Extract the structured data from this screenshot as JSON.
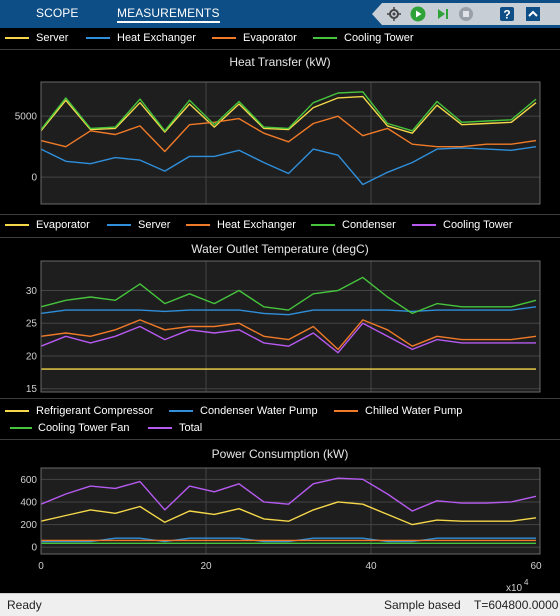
{
  "tabs": [
    {
      "label": "SCOPE"
    },
    {
      "label": "MEASUREMENTS"
    }
  ],
  "toolbar": {
    "icons": [
      "signal-trace-icon",
      "run-icon",
      "step-forward-icon",
      "stop-icon",
      "help-icon",
      "collapse-icon"
    ]
  },
  "legend1": [
    {
      "name": "Server",
      "color": "#f5d84a"
    },
    {
      "name": "Heat Exchanger",
      "color": "#2f8fdb"
    },
    {
      "name": "Evaporator",
      "color": "#f07a28"
    },
    {
      "name": "Cooling Tower",
      "color": "#45c43c"
    }
  ],
  "legend2": [
    {
      "name": "Evaporator",
      "color": "#f5d84a"
    },
    {
      "name": "Server",
      "color": "#2f8fdb"
    },
    {
      "name": "Heat Exchanger",
      "color": "#f07a28"
    },
    {
      "name": "Condenser",
      "color": "#45c43c"
    },
    {
      "name": "Cooling Tower",
      "color": "#b65af0"
    }
  ],
  "legend3": [
    {
      "name": "Refrigerant Compressor",
      "color": "#f5d84a"
    },
    {
      "name": "Condenser Water Pump",
      "color": "#2f8fdb"
    },
    {
      "name": "Chilled Water Pump",
      "color": "#f07a28"
    },
    {
      "name": "Cooling Tower Fan",
      "color": "#45c43c"
    },
    {
      "name": "Total",
      "color": "#b65af0"
    }
  ],
  "plots": {
    "p1_title": "Heat Transfer (kW)",
    "p2_title": "Water Outlet Temperature (degC)",
    "p3_title": "Power Consumption (kW)"
  },
  "xaxis": {
    "ticks": [
      "0",
      "20",
      "40",
      "60"
    ],
    "exponent_base": "x10",
    "exponent_power": "4"
  },
  "status": {
    "left": "Ready",
    "mode": "Sample based",
    "time": "T=604800.0000"
  },
  "chart_data": [
    {
      "type": "line",
      "title": "Heat Transfer (kW)",
      "x": [
        0,
        3,
        6,
        9,
        12,
        15,
        18,
        21,
        24,
        27,
        30,
        33,
        36,
        39,
        42,
        45,
        48,
        51,
        54,
        57,
        60
      ],
      "xlim": [
        0,
        60.48
      ],
      "ylim": [
        -2200,
        7800
      ],
      "yticks": [
        0,
        5000
      ],
      "series": [
        {
          "name": "Server",
          "color": "#f5d84a",
          "values": [
            3800,
            6300,
            3900,
            4000,
            6100,
            3700,
            6000,
            4100,
            6000,
            4000,
            3900,
            5700,
            6500,
            6600,
            4200,
            3600,
            5900,
            4300,
            4400,
            4500,
            6100
          ]
        },
        {
          "name": "Heat Exchanger",
          "color": "#2f8fdb",
          "values": [
            2300,
            1300,
            1100,
            1600,
            1400,
            500,
            1700,
            1700,
            2200,
            1200,
            300,
            2300,
            1800,
            -600,
            400,
            1200,
            2300,
            2400,
            2300,
            2200,
            2500
          ]
        },
        {
          "name": "Evaporator",
          "color": "#f07a28",
          "values": [
            3000,
            2500,
            3800,
            3500,
            4200,
            2100,
            4300,
            4500,
            4800,
            3600,
            2900,
            4400,
            5000,
            3400,
            4000,
            2700,
            2500,
            2500,
            2700,
            2700,
            3000
          ]
        },
        {
          "name": "Cooling Tower",
          "color": "#45c43c",
          "values": [
            3900,
            6500,
            4000,
            4100,
            6400,
            3800,
            6300,
            4300,
            6200,
            4100,
            4000,
            6100,
            6900,
            7000,
            4400,
            3800,
            6200,
            4500,
            4600,
            4700,
            6400
          ]
        }
      ]
    },
    {
      "type": "line",
      "title": "Water Outlet Temperature (degC)",
      "x": [
        0,
        3,
        6,
        9,
        12,
        15,
        18,
        21,
        24,
        27,
        30,
        33,
        36,
        39,
        42,
        45,
        48,
        51,
        54,
        57,
        60
      ],
      "xlim": [
        0,
        60.48
      ],
      "ylim": [
        14.5,
        34.5
      ],
      "yticks": [
        15,
        20,
        25,
        30
      ],
      "series": [
        {
          "name": "Evaporator",
          "color": "#f5d84a",
          "values": [
            18,
            18,
            18,
            18,
            18,
            18,
            18,
            18,
            18,
            18,
            18,
            18,
            18,
            18,
            18,
            18,
            18,
            18,
            18,
            18,
            18
          ]
        },
        {
          "name": "Server",
          "color": "#2f8fdb",
          "values": [
            26.5,
            27,
            27,
            27,
            27,
            26.8,
            27,
            27,
            27,
            26.5,
            26.3,
            27,
            27,
            27,
            27,
            26.8,
            27,
            27,
            27,
            27,
            27.5
          ]
        },
        {
          "name": "Heat Exchanger",
          "color": "#f07a28",
          "values": [
            23,
            23.5,
            23,
            24,
            25.5,
            24,
            24.5,
            24.5,
            25,
            23,
            22.5,
            24.5,
            21,
            25.5,
            24,
            21.5,
            23,
            22.5,
            22.5,
            22.5,
            23
          ]
        },
        {
          "name": "Condenser",
          "color": "#45c43c",
          "values": [
            27.5,
            28.5,
            29,
            28.5,
            31,
            28,
            29.5,
            28,
            30,
            27.5,
            27,
            29.5,
            30,
            32,
            29,
            26.5,
            28,
            27.5,
            27.5,
            27.5,
            28.5
          ]
        },
        {
          "name": "Cooling Tower",
          "color": "#b65af0",
          "values": [
            21.5,
            23,
            22,
            23,
            24.5,
            22.5,
            24,
            23.5,
            24,
            22,
            21.5,
            23.5,
            20.5,
            25,
            23,
            21,
            22.5,
            22,
            22,
            22,
            22
          ]
        }
      ]
    },
    {
      "type": "line",
      "title": "Power Consumption (kW)",
      "x": [
        0,
        3,
        6,
        9,
        12,
        15,
        18,
        21,
        24,
        27,
        30,
        33,
        36,
        39,
        42,
        45,
        48,
        51,
        54,
        57,
        60
      ],
      "xlim": [
        0,
        60.48
      ],
      "ylim": [
        -60,
        700
      ],
      "yticks": [
        0,
        200,
        400,
        600
      ],
      "xticks": [
        0,
        20,
        40,
        60
      ],
      "series": [
        {
          "name": "Refrigerant Compressor",
          "color": "#f5d84a",
          "values": [
            230,
            280,
            330,
            300,
            360,
            220,
            320,
            290,
            340,
            250,
            230,
            330,
            400,
            380,
            290,
            200,
            240,
            230,
            230,
            230,
            260
          ]
        },
        {
          "name": "Condenser Water Pump",
          "color": "#2f8fdb",
          "values": [
            50,
            50,
            50,
            80,
            80,
            50,
            80,
            80,
            80,
            50,
            50,
            80,
            80,
            80,
            50,
            50,
            80,
            80,
            80,
            80,
            80
          ]
        },
        {
          "name": "Chilled Water Pump",
          "color": "#f07a28",
          "values": [
            60,
            60,
            60,
            60,
            60,
            60,
            60,
            60,
            60,
            60,
            60,
            60,
            60,
            60,
            60,
            60,
            60,
            60,
            60,
            60,
            60
          ]
        },
        {
          "name": "Cooling Tower Fan",
          "color": "#45c43c",
          "values": [
            35,
            35,
            35,
            35,
            35,
            35,
            35,
            35,
            35,
            35,
            35,
            35,
            35,
            35,
            35,
            35,
            35,
            35,
            35,
            35,
            35
          ]
        },
        {
          "name": "Total",
          "color": "#b65af0",
          "values": [
            380,
            470,
            540,
            520,
            580,
            330,
            540,
            490,
            560,
            400,
            380,
            560,
            610,
            600,
            470,
            320,
            410,
            390,
            390,
            400,
            450
          ]
        }
      ]
    }
  ]
}
